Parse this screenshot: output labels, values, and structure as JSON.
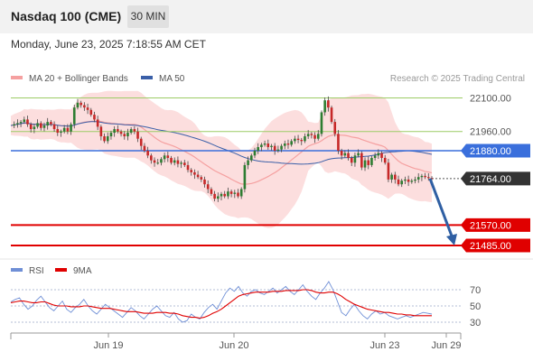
{
  "header": {
    "title": "Nasdaq 100 (CME)",
    "timeframe": "30 MIN",
    "timestamp": "Monday, June 23, 2025 7:18:55 AM CET"
  },
  "colors": {
    "bollinger": "#f5a0a0",
    "ma50": "#3a5fa8",
    "rsi": "#6f8fd6",
    "rsi_ma": "#e00000",
    "support": "#e00000",
    "pivot": "#3a6fdc",
    "resistance": "#9ccc65",
    "arrow": "#2f5fa3"
  },
  "chart_data": [
    {
      "type": "candlestick",
      "legend": [
        {
          "name": "MA 20 + Bollinger Bands",
          "color": "#f5a0a0"
        },
        {
          "name": "MA 50",
          "color": "#3a5fa8"
        }
      ],
      "legend_position": "top-left",
      "credit": "Research © 2025 Trading Central",
      "x_ticks": [
        "Jun 19",
        "Jun 20",
        "Jun 23",
        "Jun 29"
      ],
      "ylim": [
        21450,
        22150
      ],
      "last_price": "21764.00",
      "levels": [
        {
          "label": "22100.00",
          "value": 22100,
          "kind": "resistance"
        },
        {
          "label": "21960.00",
          "value": 21960,
          "kind": "resistance"
        },
        {
          "label": "21880.00",
          "value": 21880,
          "kind": "pivot"
        },
        {
          "label": "21570.00",
          "value": 21570,
          "kind": "support"
        },
        {
          "label": "21485.00",
          "value": 21485,
          "kind": "support"
        }
      ],
      "arrow": {
        "from": 21764,
        "to": 21485,
        "direction": "down"
      },
      "price_path": [
        21985,
        21990,
        21995,
        22000,
        22010,
        21990,
        21970,
        21980,
        21995,
        21975,
        21985,
        22000,
        21990,
        21970,
        21955,
        21960,
        21975,
        21960,
        21990,
        22060,
        22080,
        22070,
        22060,
        22050,
        22030,
        22010,
        21980,
        21940,
        21920,
        21940,
        21955,
        21970,
        21960,
        21950,
        21940,
        21955,
        21970,
        21960,
        21930,
        21900,
        21880,
        21860,
        21840,
        21830,
        21830,
        21845,
        21860,
        21850,
        21830,
        21840,
        21825,
        21830,
        21820,
        21800,
        21790,
        21780,
        21770,
        21760,
        21740,
        21720,
        21700,
        21680,
        21690,
        21700,
        21690,
        21710,
        21700,
        21705,
        21690,
        21720,
        21820,
        21840,
        21860,
        21880,
        21895,
        21905,
        21910,
        21895,
        21900,
        21880,
        21885,
        21900,
        21910,
        21905,
        21920,
        21930,
        21925,
        21920,
        21940,
        21950,
        21945,
        21930,
        21950,
        22040,
        22090,
        22060,
        22000,
        21950,
        21880,
        21860,
        21870,
        21850,
        21830,
        21860,
        21870,
        21810,
        21840,
        21820,
        21850,
        21860,
        21870,
        21850,
        21830,
        21760,
        21780,
        21760,
        21740,
        21755,
        21760,
        21750,
        21755,
        21760,
        21770,
        21775,
        21770,
        21766,
        21764
      ]
    },
    {
      "type": "line",
      "legend": [
        {
          "name": "RSI",
          "color": "#6f8fd6"
        },
        {
          "name": "9MA",
          "color": "#e00000"
        }
      ],
      "y_ticks": [
        "70",
        "50",
        "30"
      ],
      "ylim": [
        20,
        80
      ],
      "series": [
        {
          "name": "RSI",
          "values": [
            55,
            58,
            60,
            52,
            46,
            50,
            57,
            62,
            55,
            48,
            44,
            50,
            56,
            46,
            42,
            48,
            52,
            58,
            50,
            44,
            40,
            46,
            52,
            48,
            44,
            40,
            36,
            42,
            48,
            44,
            38,
            34,
            40,
            46,
            50,
            44,
            38,
            36,
            42,
            34,
            30,
            32,
            40,
            36,
            34,
            42,
            48,
            52,
            46,
            56,
            66,
            72,
            68,
            74,
            66,
            62,
            68,
            70,
            66,
            64,
            68,
            72,
            66,
            70,
            74,
            68,
            64,
            70,
            76,
            68,
            62,
            58,
            66,
            72,
            80,
            70,
            56,
            42,
            38,
            46,
            52,
            44,
            38,
            34,
            40,
            44,
            40,
            42,
            38,
            36,
            34,
            36,
            38,
            36,
            38,
            40,
            42,
            41,
            40
          ]
        },
        {
          "name": "9MA",
          "values": [
            54,
            55,
            56,
            56,
            55,
            54,
            54,
            55,
            55,
            53,
            51,
            50,
            50,
            50,
            49,
            49,
            49,
            50,
            50,
            49,
            48,
            47,
            47,
            47,
            46,
            45,
            44,
            43,
            43,
            43,
            42,
            41,
            41,
            41,
            42,
            42,
            42,
            41,
            41,
            40,
            38,
            37,
            36,
            36,
            35,
            36,
            38,
            41,
            43,
            46,
            50,
            54,
            58,
            62,
            64,
            65,
            66,
            67,
            67,
            67,
            67,
            68,
            68,
            68,
            69,
            69,
            69,
            69,
            70,
            70,
            69,
            67,
            66,
            66,
            67,
            67,
            65,
            62,
            58,
            55,
            52,
            50,
            48,
            46,
            45,
            44,
            43,
            42,
            42,
            41,
            40,
            40,
            39,
            39,
            38,
            38,
            38,
            38,
            38
          ]
        }
      ],
      "ref_lines": [
        70,
        50,
        30
      ]
    }
  ]
}
